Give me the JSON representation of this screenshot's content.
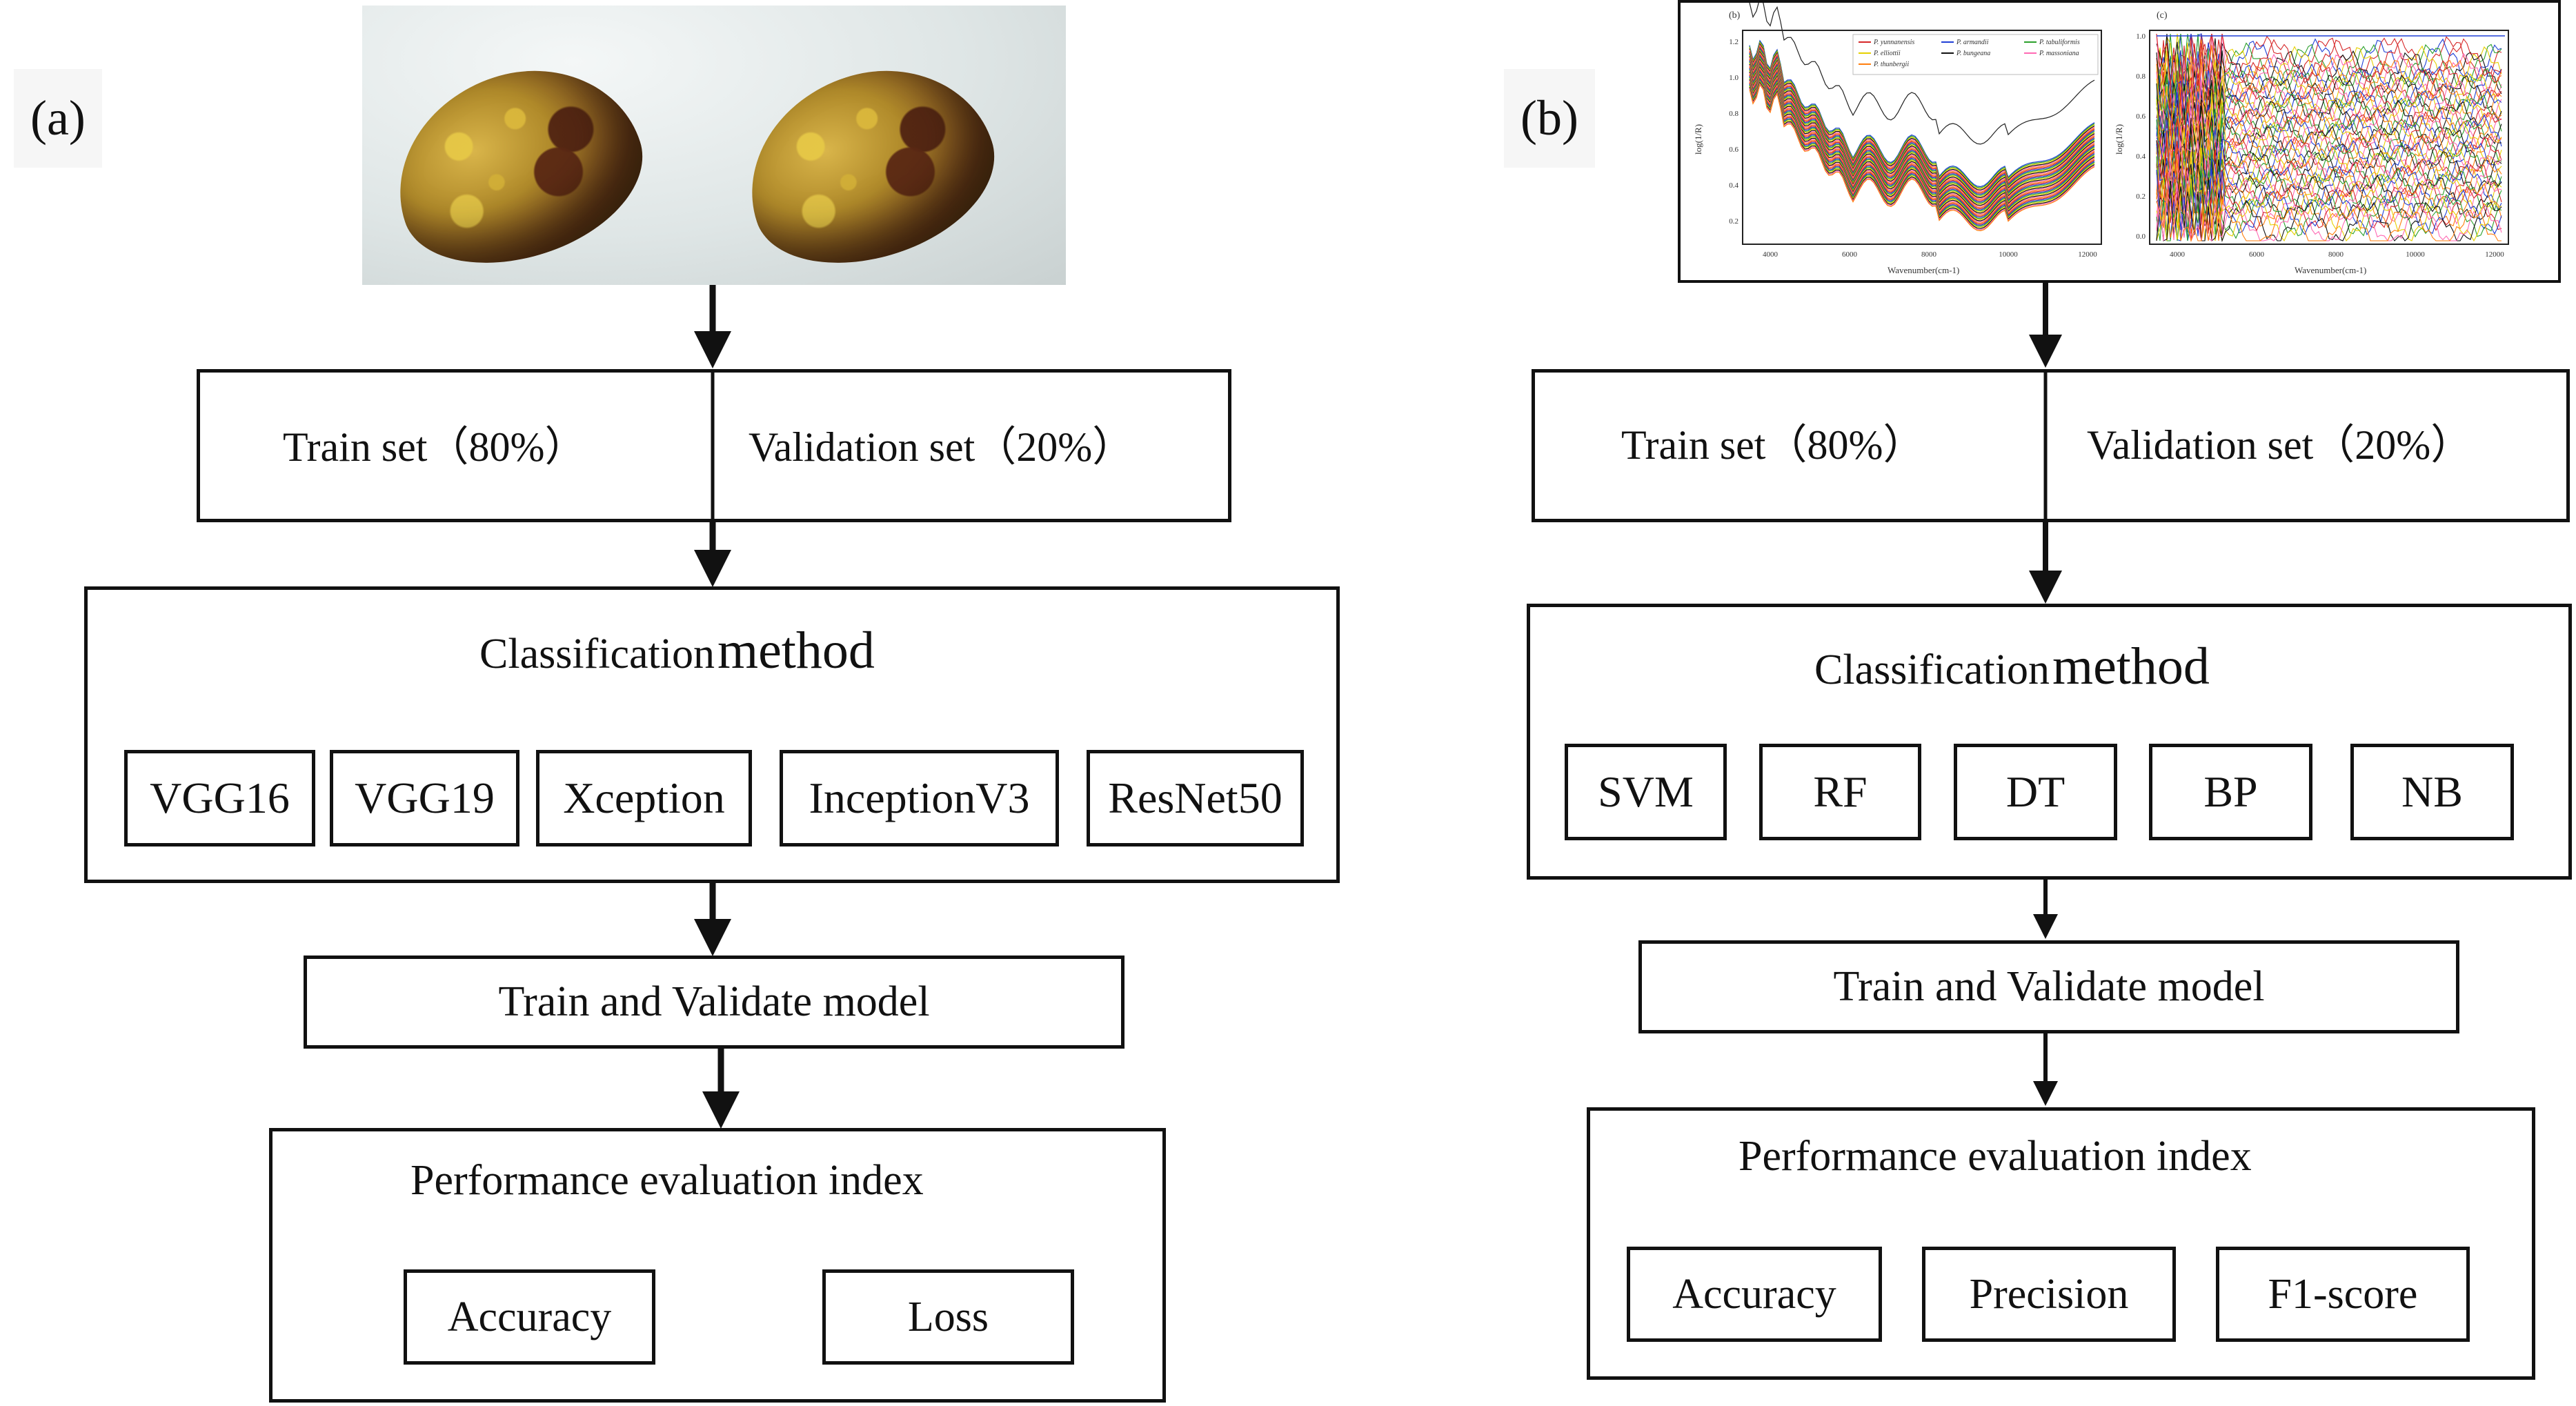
{
  "panel_a": {
    "label": "(a)",
    "split": {
      "train": "Train set（80%）",
      "validation": "Validation set（20%）"
    },
    "classification": {
      "title_part1": "Classification",
      "title_part2": "method",
      "methods": [
        "VGG16",
        "VGG19",
        "Xception",
        "InceptionV3",
        "ResNet50"
      ]
    },
    "train_validate": "Train and Validate model",
    "evaluation": {
      "title": "Performance evaluation index",
      "metrics": [
        "Accuracy",
        "Loss"
      ]
    }
  },
  "panel_b": {
    "label": "(b)",
    "split": {
      "train": "Train set（80%）",
      "validation": "Validation set（20%）"
    },
    "classification": {
      "title_part1": "Classification",
      "title_part2": "method",
      "methods": [
        "SVM",
        "RF",
        "DT",
        "BP",
        "NB"
      ]
    },
    "train_validate": "Train and Validate model",
    "evaluation": {
      "title": "Performance evaluation index",
      "metrics": [
        "Accuracy",
        "Precision",
        "F1-score"
      ]
    },
    "spectra": {
      "left_tag": "(b)",
      "right_tag": "(c)",
      "ylabel": "log(1/R)",
      "xlabel": "Wavenumber(cm-1)",
      "legend": [
        "P. yunnanensis",
        "P. armandii",
        "P. tabuliformis",
        "P. elliottii",
        "P. bungeana",
        "P. massoniana",
        "P. thunbergii"
      ],
      "left_x_ticks": [
        "4000",
        "6000",
        "8000",
        "10000",
        "12000"
      ],
      "left_y_ticks": [
        "1.2",
        "1.0",
        "0.8",
        "0.6",
        "0.4",
        "0.2"
      ],
      "right_x_ticks": [
        "4000",
        "6000",
        "8000",
        "10000",
        "12000"
      ],
      "right_y_ticks": [
        "1.0",
        "0.8",
        "0.6",
        "0.4",
        "0.2",
        "0.0"
      ],
      "series_colors": [
        "#d62728",
        "#1f3fd6",
        "#2ca02c",
        "#e6d000",
        "#111111",
        "#ff69b4",
        "#ff7f0e"
      ]
    }
  }
}
